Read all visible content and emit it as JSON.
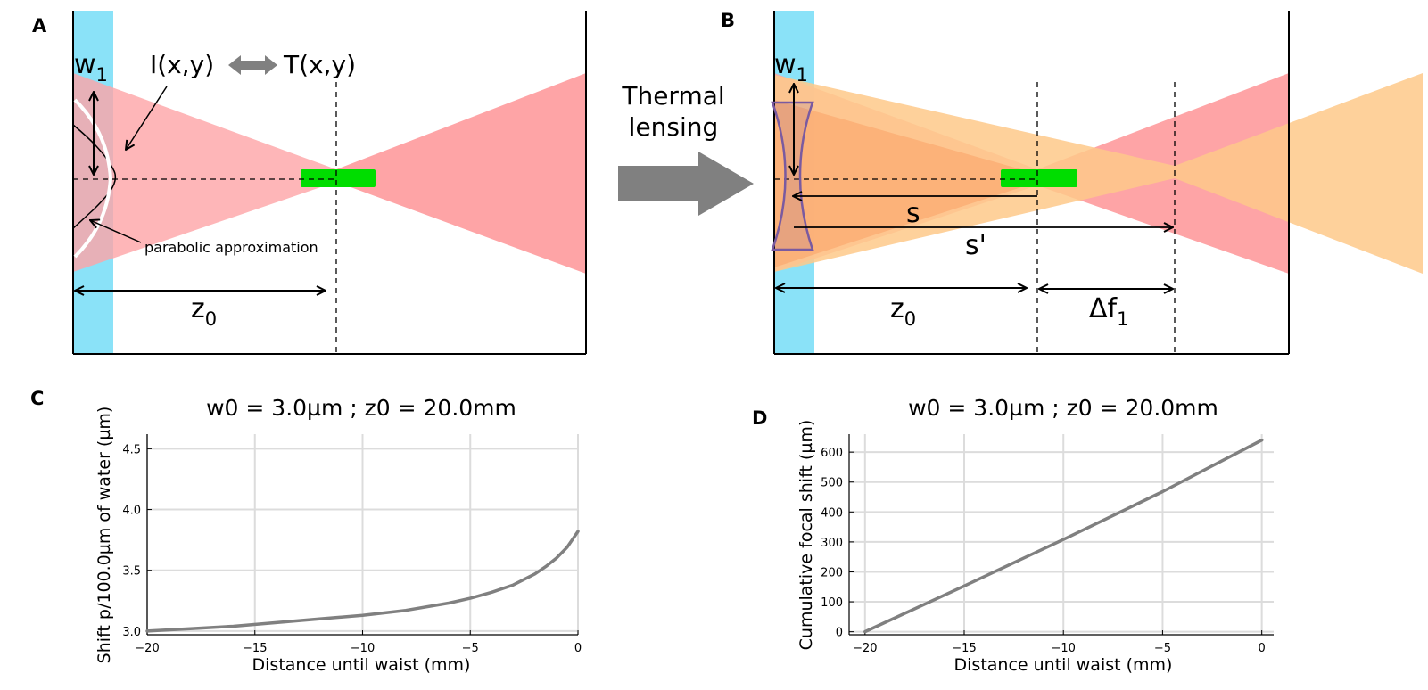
{
  "panels": {
    "a": {
      "letter": "A",
      "w1_label": "w",
      "w1_sub": "1",
      "intensity_label": "I(x,y)",
      "transmission_label": "T(x,y)",
      "parabolic_label": "parabolic approximation",
      "z0_label": "z",
      "z0_sub": "0"
    },
    "b": {
      "letter": "B",
      "w1_label": "w",
      "w1_sub": "1",
      "s_label": "s",
      "s_prime_label": "s'",
      "z0_label": "z",
      "z0_sub": "0",
      "df_label": "Δf",
      "df_sub": "1"
    },
    "transition": {
      "label_line1": "Thermal",
      "label_line2": "lensing"
    },
    "c": {
      "letter": "C"
    },
    "d": {
      "letter": "D"
    }
  },
  "colors": {
    "water": "#8ae2f8",
    "beam": "#fea4a6",
    "beam_lensed": "#fec98a",
    "overlap": "#fb9a5e",
    "waist": "#00dd00",
    "lens": "#7a5aa0",
    "curve": "#808080",
    "arrow_gray": "#808080"
  },
  "chart_data": [
    {
      "type": "line",
      "title": "w0 = 3.0µm ; z0 = 20.0mm",
      "xlabel": "Distance until waist (mm)",
      "ylabel": "Shift p/100.0µm of water (µm)",
      "xlim": [
        -20,
        0
      ],
      "ylim": [
        2.97,
        4.62
      ],
      "xticks": [
        -20,
        -15,
        -10,
        -5,
        0
      ],
      "xtick_labels": [
        "−20",
        "−15",
        "−10",
        "−5",
        "0"
      ],
      "yticks": [
        3.0,
        3.5,
        4.0,
        4.5
      ],
      "ytick_labels": [
        "3.0",
        "3.5",
        "4.0",
        "4.5"
      ],
      "grid": true,
      "legend": "none",
      "series": [
        {
          "x": [
            -20,
            -18,
            -16,
            -14,
            -12,
            -10,
            -8,
            -6,
            -5,
            -4,
            -3,
            -2,
            -1.5,
            -1,
            -0.5,
            0
          ],
          "y": [
            3.0,
            3.02,
            3.04,
            3.07,
            3.1,
            3.13,
            3.17,
            3.23,
            3.27,
            3.32,
            3.38,
            3.47,
            3.53,
            3.6,
            3.69,
            3.82
          ]
        }
      ]
    },
    {
      "type": "line",
      "title": "w0 = 3.0µm ; z0 = 20.0mm",
      "xlabel": "Distance until waist (mm)",
      "ylabel": "Cumulative focal shift (µm)",
      "xlim": [
        -20.8,
        0.6
      ],
      "ylim": [
        -10,
        660
      ],
      "xticks": [
        -20,
        -15,
        -10,
        -5,
        0
      ],
      "xtick_labels": [
        "−20",
        "−15",
        "−10",
        "−5",
        "0"
      ],
      "yticks": [
        0,
        100,
        200,
        300,
        400,
        500,
        600
      ],
      "ytick_labels": [
        "0",
        "100",
        "200",
        "300",
        "400",
        "500",
        "600"
      ],
      "grid": true,
      "legend": "none",
      "series": [
        {
          "x": [
            -20,
            -15,
            -10,
            -5,
            0
          ],
          "y": [
            0,
            153,
            308,
            468,
            640
          ]
        }
      ]
    }
  ]
}
